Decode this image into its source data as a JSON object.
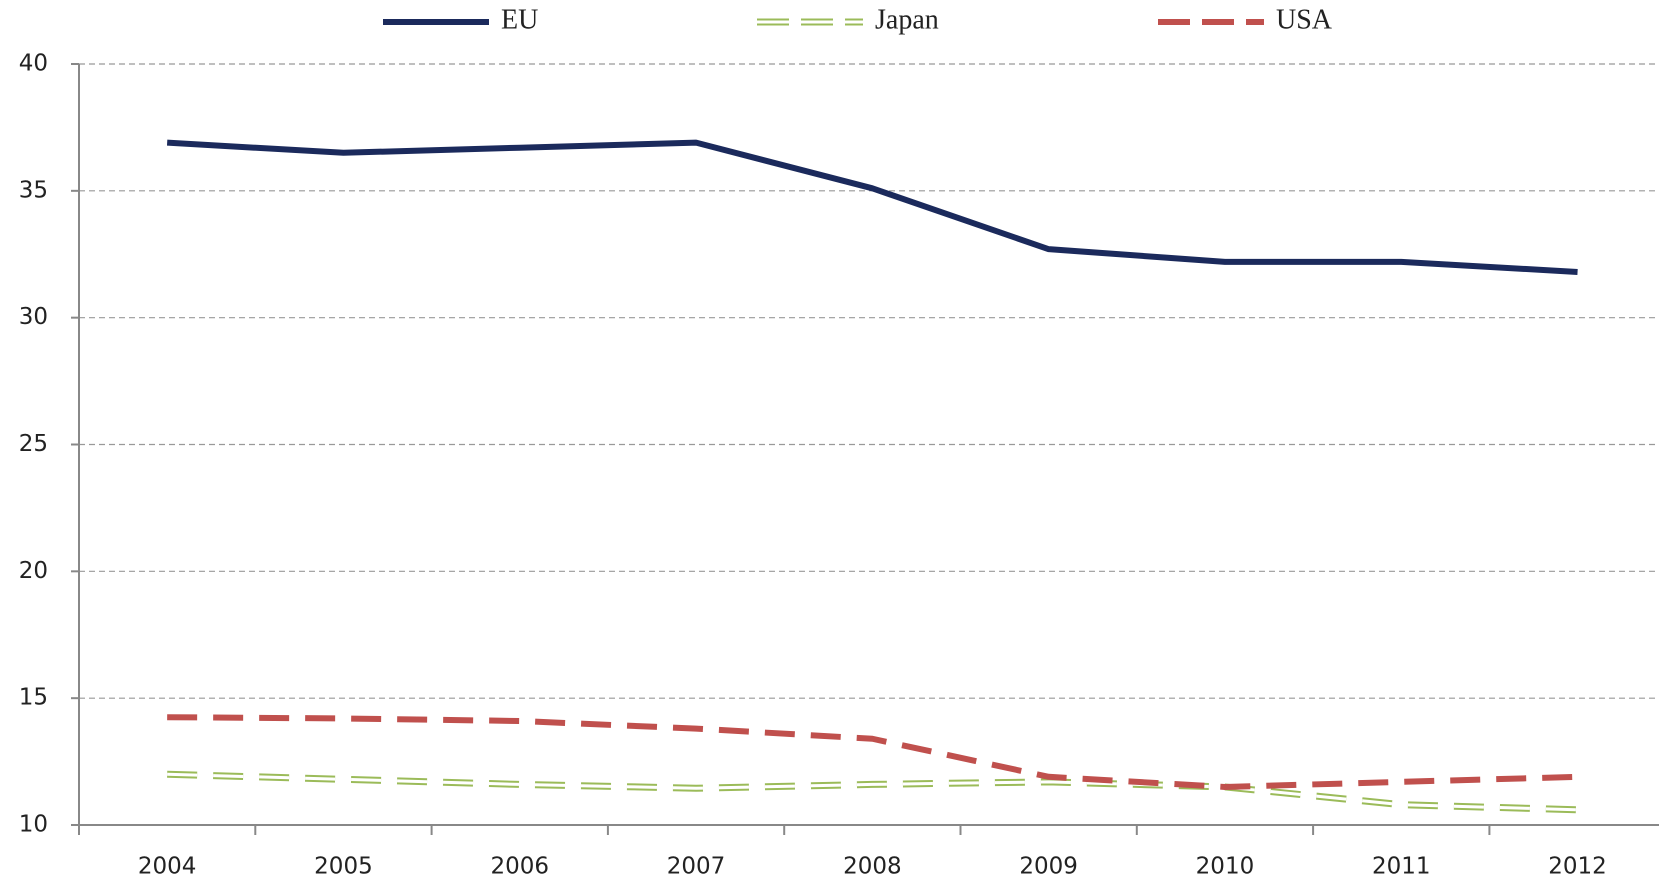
{
  "chart_data": {
    "type": "line",
    "categories": [
      "2004",
      "2005",
      "2006",
      "2007",
      "2008",
      "2009",
      "2010",
      "2011",
      "2012"
    ],
    "series": [
      {
        "name": "EU",
        "color": "#1b2a5c",
        "style": "solid",
        "values": [
          36.9,
          36.5,
          36.7,
          36.9,
          35.1,
          32.7,
          32.2,
          32.2,
          31.8
        ]
      },
      {
        "name": "Japan",
        "color": "#9bbb59",
        "style": "double-dashed",
        "values": [
          12.0,
          11.8,
          11.6,
          11.45,
          11.6,
          11.7,
          11.5,
          10.8,
          10.6
        ]
      },
      {
        "name": "USA",
        "color": "#c0504d",
        "style": "dashed",
        "values": [
          14.25,
          14.2,
          14.1,
          13.8,
          13.4,
          11.9,
          11.5,
          11.7,
          11.9
        ]
      }
    ],
    "ylim": [
      10,
      40
    ],
    "yticks": [
      10,
      15,
      20,
      25,
      30,
      35,
      40
    ],
    "grid": true,
    "legend": "top"
  }
}
